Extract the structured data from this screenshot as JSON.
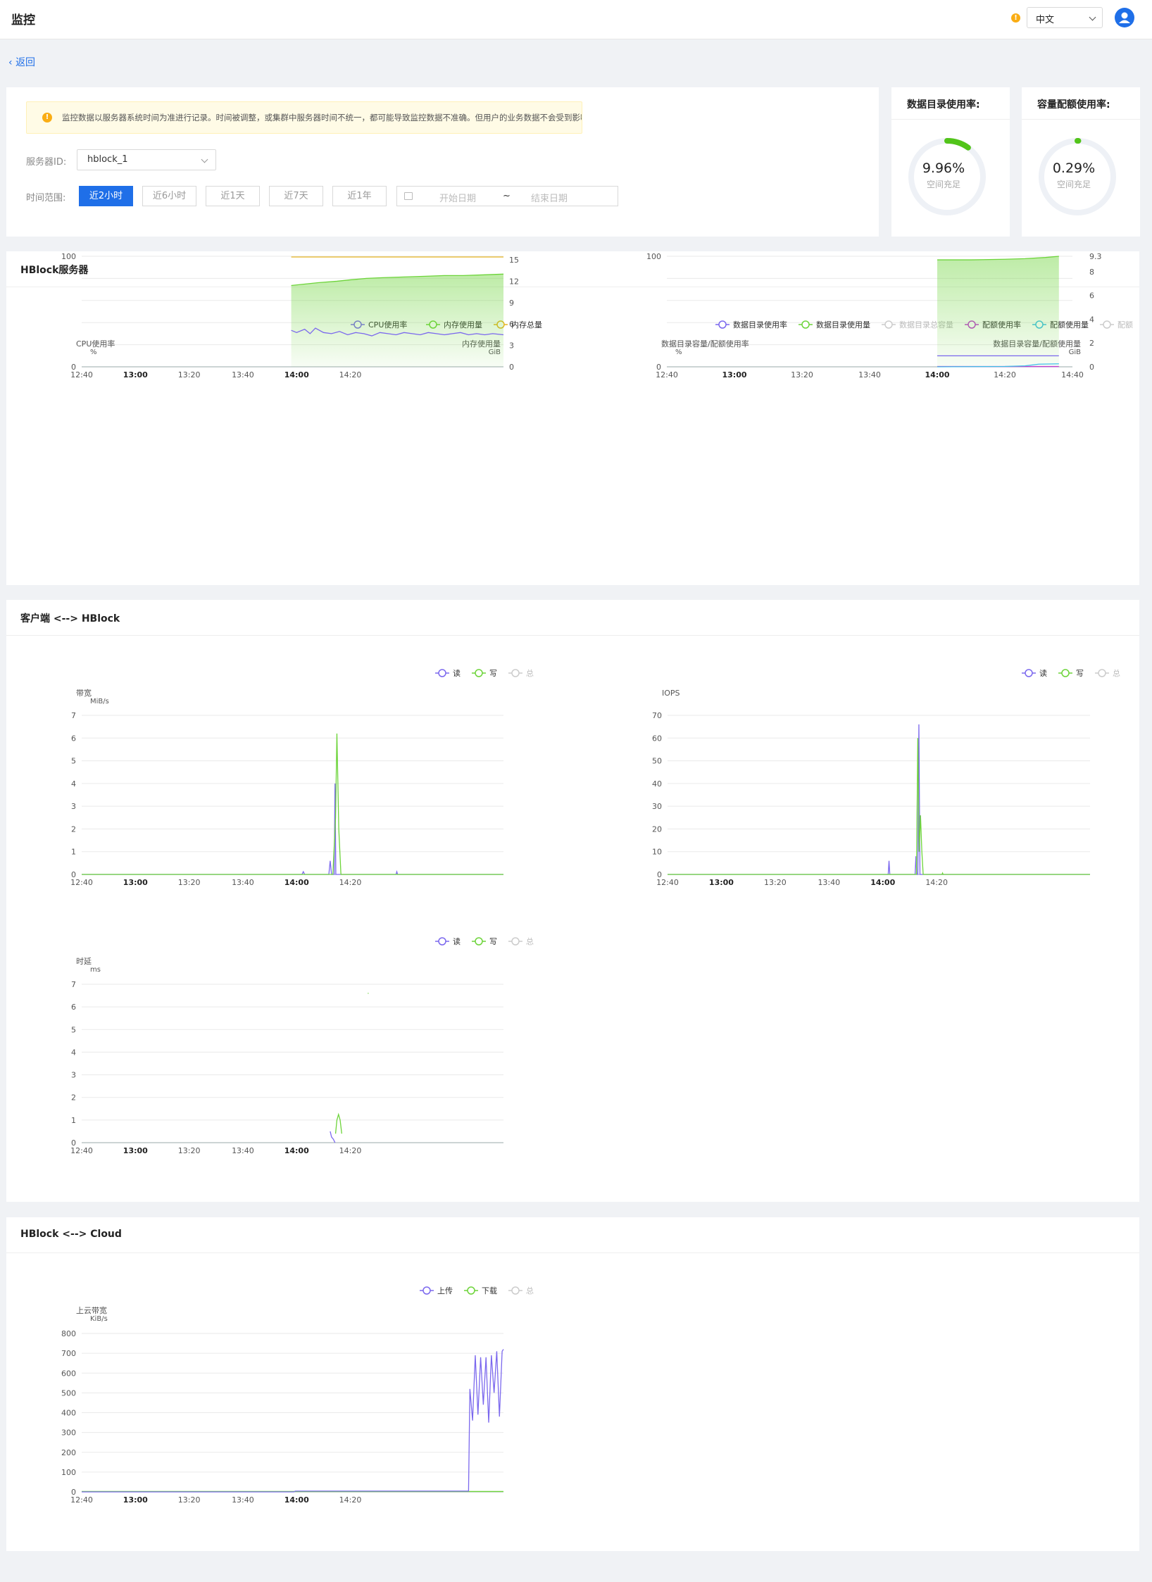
{
  "app": {
    "title": "监控",
    "language": "中文",
    "warning_icon": "warning-icon",
    "user_icon": "user-icon"
  },
  "nav": {
    "back": "返回"
  },
  "alert": {
    "text": "监控数据以服务器系统时间为准进行记录。时间被调整，或集群中服务器时间不统一，都可能导致监控数据不准确。但用户的业务数据不会受到影响。"
  },
  "filters": {
    "server_label": "服务器ID:",
    "server_value": "hblock_1",
    "range_label": "时间范围:",
    "ranges": [
      "近2小时",
      "近6小时",
      "近1天",
      "近7天",
      "近1年"
    ],
    "active_range": "近2小时",
    "start_placeholder": "开始日期",
    "end_placeholder": "结束日期",
    "separator": "~"
  },
  "gauges": [
    {
      "title": "数据目录使用率:",
      "value": "9.96%",
      "fraction": 0.0996,
      "caption": "空间充足",
      "color": "#52c41a"
    },
    {
      "title": "容量配额使用率:",
      "value": "0.29%",
      "fraction": 0.0029,
      "caption": "空间充足",
      "color": "#52c41a"
    }
  ],
  "sections": {
    "server": "HBlock服务器",
    "client": "客户端 <--> HBlock",
    "cloud": "HBlock <--> Cloud"
  },
  "colors": {
    "purple": "#7b68ee",
    "green": "#6dd43a",
    "yellow": "#e6b422",
    "grey": "#bfbfbf",
    "magenta": "#c040d0",
    "cyan": "#40c0e8",
    "blue": "#1f6fe8",
    "orange": "#faad14"
  },
  "chart_data": [
    {
      "id": "cpu-mem",
      "type": "line",
      "legend": [
        {
          "name": "CPU使用率",
          "color": "#7b68ee",
          "active": true
        },
        {
          "name": "内存使用量",
          "color": "#6dd43a",
          "active": true
        },
        {
          "name": "内存总量",
          "color": "#e6b422",
          "active": true
        }
      ],
      "ylabel_left": "CPU使用率",
      "unit_left": "%",
      "ylabel_right": "内存使用量",
      "unit_right": "GiB",
      "ylim_left": [
        0,
        100
      ],
      "yticks_left": [
        "100",
        "0"
      ],
      "ylim_right": [
        0,
        15.5
      ],
      "yticks_right": [
        "15",
        "12",
        "9",
        "6",
        "3",
        "0"
      ],
      "xlim": [
        760,
        917
      ],
      "xticks": [
        {
          "v": 760,
          "l": "12:40"
        },
        {
          "v": 780,
          "l": "13:00",
          "b": true
        },
        {
          "v": 800,
          "l": "13:20"
        },
        {
          "v": 820,
          "l": "13:40"
        },
        {
          "v": 840,
          "l": "14:00",
          "b": true
        },
        {
          "v": 860,
          "l": "14:20"
        }
      ],
      "series": [
        {
          "name": "内存总量",
          "axis": "right",
          "color": "#e6b422",
          "x": [
            838,
            917
          ],
          "y": [
            15.4,
            15.4
          ]
        },
        {
          "name": "内存使用量",
          "axis": "right",
          "color": "#6dd43a",
          "fill": true,
          "x": [
            838,
            843,
            848,
            855,
            860,
            866,
            872,
            880,
            888,
            895,
            902,
            910,
            917
          ],
          "y": [
            11.4,
            11.6,
            11.8,
            12.0,
            12.2,
            12.4,
            12.5,
            12.6,
            12.7,
            12.8,
            12.8,
            12.9,
            13.0
          ]
        },
        {
          "name": "CPU使用率",
          "axis": "left",
          "color": "#7b68ee",
          "x": [
            838,
            840,
            843,
            845,
            847,
            850,
            853,
            856,
            859,
            862,
            865,
            868,
            871,
            874,
            877,
            880,
            883,
            886,
            889,
            892,
            895,
            898,
            901,
            904,
            907,
            910,
            913,
            917
          ],
          "y": [
            33,
            31,
            34,
            30,
            35,
            31,
            30,
            32,
            29,
            31,
            30,
            28,
            31,
            30,
            29,
            31,
            30,
            29,
            31,
            30,
            29,
            30,
            31,
            29,
            30,
            29,
            30,
            29
          ]
        }
      ]
    },
    {
      "id": "datadir-quota",
      "type": "area",
      "legend": [
        {
          "name": "数据目录使用率",
          "color": "#7b68ee",
          "active": true
        },
        {
          "name": "数据目录使用量",
          "color": "#6dd43a",
          "active": true
        },
        {
          "name": "数据目录总容量",
          "color": "#bfbfbf",
          "active": false
        },
        {
          "name": "配额使用率",
          "color": "#c040d0",
          "active": true
        },
        {
          "name": "配额使用量",
          "color": "#40c0e8",
          "active": true
        },
        {
          "name": "配额",
          "color": "#bfbfbf",
          "active": false
        }
      ],
      "ylabel_left": "数据目录容量/配额使用率",
      "unit_left": "%",
      "ylabel_right": "数据目录容量/配额使用量",
      "unit_right": "GiB",
      "ylim_left": [
        0,
        100
      ],
      "yticks_left": [
        "100",
        "0"
      ],
      "ylim_right": [
        0,
        9.3
      ],
      "yticks_right": [
        "9.3",
        "8",
        "6",
        "4",
        "2",
        "0"
      ],
      "xlim": [
        760,
        880
      ],
      "xticks": [
        {
          "v": 760,
          "l": "12:40"
        },
        {
          "v": 780,
          "l": "13:00",
          "b": true
        },
        {
          "v": 800,
          "l": "13:20"
        },
        {
          "v": 820,
          "l": "13:40"
        },
        {
          "v": 840,
          "l": "14:00",
          "b": true
        },
        {
          "v": 860,
          "l": "14:20"
        },
        {
          "v": 880,
          "l": "14:40"
        }
      ],
      "series": [
        {
          "name": "数据目录使用量",
          "axis": "right",
          "color": "#6dd43a",
          "fill": true,
          "x": [
            840,
            850,
            860,
            866,
            872,
            876
          ],
          "y": [
            9.0,
            9.0,
            9.05,
            9.1,
            9.2,
            9.3
          ]
        },
        {
          "name": "数据目录使用率",
          "axis": "left",
          "color": "#7b68ee",
          "x": [
            840,
            876
          ],
          "y": [
            9.96,
            9.96
          ]
        },
        {
          "name": "配额使用率",
          "axis": "left",
          "color": "#c040d0",
          "x": [
            840,
            876
          ],
          "y": [
            0.29,
            0.29
          ]
        },
        {
          "name": "配额使用量",
          "axis": "right",
          "color": "#40c0e8",
          "x": [
            840,
            860,
            866,
            870,
            876
          ],
          "y": [
            0.0,
            0.03,
            0.08,
            0.22,
            0.25
          ]
        }
      ]
    },
    {
      "id": "client-bandwidth",
      "type": "line",
      "legend": [
        {
          "name": "读",
          "color": "#7b68ee",
          "active": true
        },
        {
          "name": "写",
          "color": "#6dd43a",
          "active": true
        },
        {
          "name": "总",
          "color": "#bfbfbf",
          "active": false
        }
      ],
      "ylabel_left": "带宽",
      "unit_left": "MiB/s",
      "ylim_left": [
        0,
        7
      ],
      "yticks_left": [
        "7",
        "6",
        "5",
        "4",
        "3",
        "2",
        "1",
        "0"
      ],
      "xlim": [
        760,
        917
      ],
      "xticks": [
        {
          "v": 760,
          "l": "12:40"
        },
        {
          "v": 780,
          "l": "13:00",
          "b": true
        },
        {
          "v": 800,
          "l": "13:20"
        },
        {
          "v": 820,
          "l": "13:40"
        },
        {
          "v": 840,
          "l": "14:00",
          "b": true
        },
        {
          "v": 860,
          "l": "14:20"
        }
      ],
      "series": [
        {
          "name": "读",
          "axis": "left",
          "color": "#7b68ee",
          "x": [
            760,
            842,
            842.5,
            843,
            852,
            852.5,
            853,
            854,
            854.3,
            854.6,
            855,
            877,
            877.3,
            877.6,
            917
          ],
          "y": [
            0,
            0,
            0.12,
            0,
            0,
            0.6,
            0,
            0,
            4.0,
            0,
            0,
            0,
            0.12,
            0,
            0
          ]
        },
        {
          "name": "写",
          "axis": "left",
          "color": "#6dd43a",
          "x": [
            760,
            853.5,
            854.5,
            855,
            855.7,
            856.5,
            917
          ],
          "y": [
            0,
            0,
            2.5,
            6.2,
            2.0,
            0,
            0
          ]
        }
      ]
    },
    {
      "id": "client-iops",
      "type": "line",
      "legend": [
        {
          "name": "读",
          "color": "#7b68ee",
          "active": true
        },
        {
          "name": "写",
          "color": "#6dd43a",
          "active": true
        },
        {
          "name": "总",
          "color": "#bfbfbf",
          "active": false
        }
      ],
      "ylabel_left": "IOPS",
      "unit_left": "",
      "ylim_left": [
        0,
        70
      ],
      "yticks_left": [
        "70",
        "60",
        "50",
        "40",
        "30",
        "20",
        "10",
        "0"
      ],
      "xlim": [
        760,
        917
      ],
      "xticks": [
        {
          "v": 760,
          "l": "12:40"
        },
        {
          "v": 780,
          "l": "13:00",
          "b": true
        },
        {
          "v": 800,
          "l": "13:20"
        },
        {
          "v": 820,
          "l": "13:40"
        },
        {
          "v": 840,
          "l": "14:00",
          "b": true
        },
        {
          "v": 860,
          "l": "14:20"
        }
      ],
      "series": [
        {
          "name": "读",
          "axis": "left",
          "color": "#7b68ee",
          "x": [
            760,
            842,
            842.3,
            842.6,
            852,
            852.3,
            852.6,
            853,
            853.4,
            853.8,
            917
          ],
          "y": [
            0,
            0,
            6,
            0,
            0,
            8,
            0,
            0,
            66,
            0,
            0
          ]
        },
        {
          "name": "写",
          "axis": "left",
          "color": "#6dd43a",
          "x": [
            760,
            852.5,
            853,
            853.5,
            854,
            854.5,
            855,
            862,
            862.2,
            862.4,
            917
          ],
          "y": [
            0,
            0,
            60,
            10,
            26,
            10,
            0,
            0,
            0.6,
            0,
            0
          ]
        }
      ]
    },
    {
      "id": "client-latency",
      "type": "line",
      "legend": [
        {
          "name": "读",
          "color": "#7b68ee",
          "active": true
        },
        {
          "name": "写",
          "color": "#6dd43a",
          "active": true
        },
        {
          "name": "总",
          "color": "#bfbfbf",
          "active": false
        }
      ],
      "ylabel_left": "时延",
      "unit_left": "ms",
      "ylim_left": [
        0,
        7
      ],
      "yticks_left": [
        "7",
        "6",
        "5",
        "4",
        "3",
        "2",
        "1",
        "0"
      ],
      "xlim": [
        760,
        917
      ],
      "xticks": [
        {
          "v": 760,
          "l": "12:40"
        },
        {
          "v": 780,
          "l": "13:00",
          "b": true
        },
        {
          "v": 800,
          "l": "13:20"
        },
        {
          "v": 820,
          "l": "13:40"
        },
        {
          "v": 840,
          "l": "14:00",
          "b": true
        },
        {
          "v": 860,
          "l": "14:20"
        }
      ],
      "series": [
        {
          "name": "读",
          "axis": "left",
          "color": "#7b68ee",
          "x": [
            852.5,
            853,
            853.7,
            854.3
          ],
          "y": [
            0.5,
            0.25,
            0.15,
            0
          ]
        },
        {
          "name": "写",
          "axis": "left",
          "color": "#6dd43a",
          "x": [
            854.5,
            855,
            855.6,
            856.2,
            856.8
          ],
          "y": [
            0.4,
            1.0,
            1.25,
            1.0,
            0.4
          ]
        },
        {
          "name": "写",
          "axis": "left",
          "color": "#6dd43a",
          "x": [
            866.5,
            866.8
          ],
          "y": [
            6.6,
            6.6
          ]
        }
      ]
    },
    {
      "id": "cloud-bandwidth",
      "type": "line",
      "legend": [
        {
          "name": "上传",
          "color": "#7b68ee",
          "active": true
        },
        {
          "name": "下载",
          "color": "#6dd43a",
          "active": true
        },
        {
          "name": "总",
          "color": "#bfbfbf",
          "active": false
        }
      ],
      "ylabel_left": "上云带宽",
      "unit_left": "KiB/s",
      "ylim_left": [
        0,
        800
      ],
      "yticks_left": [
        "800",
        "700",
        "600",
        "500",
        "400",
        "300",
        "200",
        "100",
        "0"
      ],
      "xlim": [
        760,
        917
      ],
      "xticks": [
        {
          "v": 760,
          "l": "12:40"
        },
        {
          "v": 780,
          "l": "13:00",
          "b": true
        },
        {
          "v": 800,
          "l": "13:20"
        },
        {
          "v": 820,
          "l": "13:40"
        },
        {
          "v": 840,
          "l": "14:00",
          "b": true
        },
        {
          "v": 860,
          "l": "14:20"
        }
      ],
      "series": [
        {
          "name": "下载",
          "axis": "left",
          "color": "#6dd43a",
          "x": [
            760,
            917
          ],
          "y": [
            2,
            2
          ]
        },
        {
          "name": "上传",
          "axis": "left",
          "color": "#7b68ee",
          "x": [
            760,
            839,
            839.5,
            900,
            904,
            904.5,
            905.5,
            906.5,
            907.5,
            908.5,
            909.5,
            910.5,
            911.5,
            912.5,
            913.5,
            914.5,
            915.5,
            916.5,
            917
          ],
          "y": [
            0,
            0,
            4,
            4,
            4,
            520,
            360,
            690,
            390,
            680,
            440,
            680,
            350,
            690,
            500,
            710,
            380,
            710,
            720
          ]
        }
      ]
    }
  ]
}
